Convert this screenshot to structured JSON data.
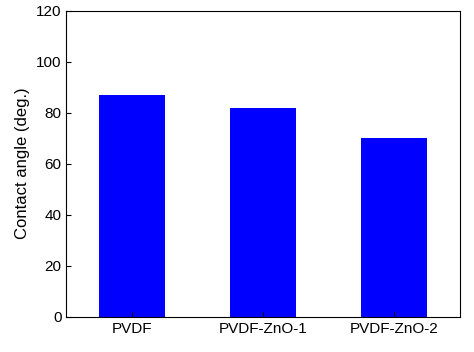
{
  "chart_data": {
    "type": "bar",
    "categories": [
      "PVDF",
      "PVDF-ZnO-1",
      "PVDF-ZnO-2"
    ],
    "values": [
      87,
      82,
      70
    ],
    "color": "#0000ff",
    "y_label": "Contact angle (deg.)",
    "ylim": [
      0,
      120
    ],
    "yticks": [
      0,
      20,
      40,
      60,
      80,
      100,
      120
    ],
    "grid": false
  }
}
